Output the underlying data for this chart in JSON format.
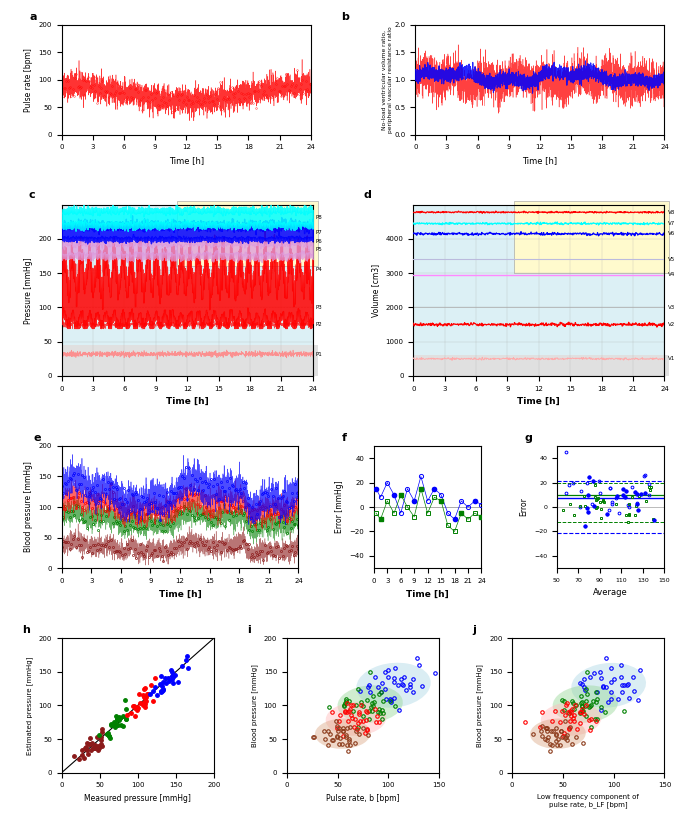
{
  "fig_width": 6.85,
  "fig_height": 8.22,
  "dpi": 100,
  "time_hours": [
    0,
    3,
    6,
    9,
    12,
    15,
    18,
    21,
    24
  ],
  "colors": {
    "red": "#FF0000",
    "blue": "#0000FF",
    "dark_red": "#800000",
    "cyan": "#00FFFF",
    "magenta": "#FF00FF",
    "pink": "#FFB6C1",
    "light_blue": "#ADD8E6",
    "green": "#008000",
    "yellow_bg": "#FFFACD",
    "grid_bg_light": "#DCF0F5",
    "grid_bg_gray": "#D8D8D8"
  },
  "panel_a": {
    "ylabel": "Pulse rate [bpm]",
    "xlabel": "Time [h]",
    "ylim": [
      0,
      200
    ],
    "xlim": [
      0,
      24
    ],
    "yticks": [
      0,
      50,
      100,
      150,
      200
    ]
  },
  "panel_b": {
    "ylabel": "No-load ventricular volume ratio,\nperipheral vascular resistance ratio",
    "xlabel": "Time [h]",
    "ylim": [
      0.0,
      2.0
    ],
    "xlim": [
      0,
      24
    ],
    "yticks": [
      0.0,
      0.5,
      1.0,
      1.5,
      2.0
    ]
  },
  "panel_c": {
    "ylabel": "Pressure [mmHg]",
    "xlabel": "Time [h]",
    "ylim": [
      0,
      250
    ],
    "xlim": [
      0,
      24
    ],
    "yticks": [
      0,
      50,
      100,
      150,
      200
    ],
    "labels": [
      "P1",
      "P2",
      "P3",
      "P4",
      "P5",
      "P6",
      "P7",
      "P8"
    ]
  },
  "panel_d": {
    "ylabel": "Volume [cm3]",
    "xlabel": "Time [h]",
    "ylim": [
      0,
      5000
    ],
    "xlim": [
      0,
      24
    ],
    "yticks": [
      0,
      1000,
      2000,
      3000,
      4000
    ],
    "labels": [
      "V1",
      "V2",
      "V3",
      "V4",
      "V5",
      "V6",
      "V7",
      "V8"
    ]
  },
  "panel_e": {
    "ylabel": "Blood pressure [mmHg]",
    "xlabel": "Time [h]",
    "ylim": [
      0,
      200
    ],
    "xlim": [
      0,
      24
    ],
    "yticks": [
      0,
      50,
      100,
      150,
      200
    ]
  },
  "panel_f": {
    "ylabel": "Error [mmHg]",
    "xlabel": "Time [h]",
    "ylim": [
      -50,
      50
    ],
    "xlim": [
      0,
      24
    ],
    "yticks": [
      -40,
      -20,
      0,
      20,
      40
    ]
  },
  "panel_g": {
    "ylabel": "Error",
    "xlabel": "Average",
    "ylim": [
      -50,
      50
    ],
    "xlim": [
      50,
      150
    ],
    "yticks": [
      -40,
      -20,
      0,
      20,
      40
    ],
    "xticks": [
      50,
      60,
      70,
      80,
      90,
      100,
      110,
      120,
      130,
      140,
      150
    ]
  },
  "panel_h": {
    "ylabel": "Estimated pressure [mmHg]",
    "xlabel": "Measured pressure [mmHg]",
    "xlim": [
      0,
      200
    ],
    "ylim": [
      0,
      200
    ],
    "xticks": [
      0,
      50,
      100,
      150,
      200
    ],
    "yticks": [
      0,
      50,
      100,
      150,
      200
    ]
  },
  "panel_i": {
    "ylabel": "Blood pressure [mmHg]",
    "xlabel": "Pulse rate, b [bpm]",
    "xlim": [
      0,
      150
    ],
    "ylim": [
      0,
      200
    ],
    "xticks": [
      0,
      50,
      100,
      150
    ],
    "yticks": [
      0,
      50,
      100,
      150,
      200
    ]
  },
  "panel_j": {
    "ylabel": "Blood pressure [mmHg]",
    "xlabel": "Low frequency component of\npulse rate, b_LF [bpm]",
    "xlim": [
      0,
      150
    ],
    "ylim": [
      0,
      200
    ],
    "xticks": [
      0,
      50,
      100,
      150
    ],
    "yticks": [
      0,
      50,
      100,
      150,
      200
    ]
  }
}
